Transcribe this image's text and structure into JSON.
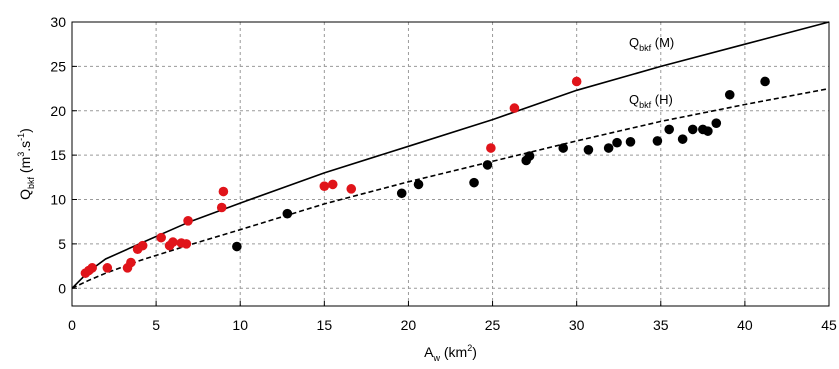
{
  "chart_data": {
    "type": "scatter",
    "xlim": [
      0,
      45
    ],
    "ylim": [
      -2,
      30
    ],
    "xticks": [
      0,
      5,
      10,
      15,
      20,
      25,
      30,
      35,
      40,
      45
    ],
    "yticks": [
      0,
      5,
      10,
      15,
      20,
      25,
      30
    ],
    "grid": true,
    "xlabel": {
      "base": "A",
      "sub": "w",
      "rest": " (km",
      "sup": "2",
      "end": ")"
    },
    "ylabel": {
      "base": "Q",
      "sub": "bkf",
      "rest": " (m",
      "sup": "3",
      "mid": ".s",
      "sup2": "-1",
      "end": ")"
    },
    "series": [
      {
        "marker_color": "#e0141a",
        "points": [
          [
            0.8,
            1.7
          ],
          [
            1.0,
            2.0
          ],
          [
            1.2,
            2.3
          ],
          [
            2.1,
            2.3
          ],
          [
            3.3,
            2.3
          ],
          [
            3.5,
            2.9
          ],
          [
            3.9,
            4.4
          ],
          [
            4.2,
            4.8
          ],
          [
            5.3,
            5.7
          ],
          [
            5.8,
            4.8
          ],
          [
            6.0,
            5.2
          ],
          [
            6.5,
            5.1
          ],
          [
            6.8,
            5.0
          ],
          [
            6.9,
            7.6
          ],
          [
            8.9,
            9.1
          ],
          [
            9.0,
            10.9
          ],
          [
            15.0,
            11.5
          ],
          [
            15.5,
            11.7
          ],
          [
            16.6,
            11.2
          ],
          [
            24.9,
            15.8
          ],
          [
            26.3,
            20.3
          ],
          [
            30.0,
            23.3
          ]
        ]
      },
      {
        "marker_color": "#000000",
        "points": [
          [
            9.8,
            4.7
          ],
          [
            12.8,
            8.4
          ],
          [
            19.6,
            10.7
          ],
          [
            20.6,
            11.7
          ],
          [
            23.9,
            11.9
          ],
          [
            24.7,
            13.9
          ],
          [
            27.0,
            14.4
          ],
          [
            27.2,
            14.9
          ],
          [
            29.2,
            15.8
          ],
          [
            30.7,
            15.6
          ],
          [
            31.9,
            15.8
          ],
          [
            32.4,
            16.4
          ],
          [
            33.2,
            16.5
          ],
          [
            34.8,
            16.6
          ],
          [
            35.5,
            17.9
          ],
          [
            36.3,
            16.8
          ],
          [
            36.9,
            17.9
          ],
          [
            37.5,
            17.9
          ],
          [
            37.8,
            17.7
          ],
          [
            38.3,
            18.6
          ],
          [
            39.1,
            21.8
          ],
          [
            41.2,
            23.3
          ]
        ]
      }
    ],
    "curves": [
      {
        "style": "solid",
        "color": "#000000",
        "points": [
          [
            0,
            0
          ],
          [
            1,
            1.9
          ],
          [
            2,
            3.3
          ],
          [
            4,
            5.0
          ],
          [
            7,
            7.5
          ],
          [
            10,
            9.6
          ],
          [
            15,
            13.0
          ],
          [
            20,
            16.0
          ],
          [
            25,
            19.0
          ],
          [
            30,
            22.3
          ],
          [
            35,
            25.0
          ],
          [
            40,
            27.5
          ],
          [
            45,
            30.0
          ]
        ],
        "label": {
          "base": "Q",
          "sub": "bkf",
          "rest": " (M)"
        }
      },
      {
        "style": "dashed",
        "color": "#000000",
        "points": [
          [
            0,
            0
          ],
          [
            1,
            0.9
          ],
          [
            2,
            1.7
          ],
          [
            4,
            3.1
          ],
          [
            7,
            4.9
          ],
          [
            10,
            6.6
          ],
          [
            15,
            9.5
          ],
          [
            20,
            12.0
          ],
          [
            25,
            14.3
          ],
          [
            30,
            16.6
          ],
          [
            35,
            18.8
          ],
          [
            40,
            20.7
          ],
          [
            45,
            22.5
          ]
        ],
        "label": {
          "base": "Q",
          "sub": "bkf",
          "rest": " (H)"
        }
      }
    ]
  }
}
